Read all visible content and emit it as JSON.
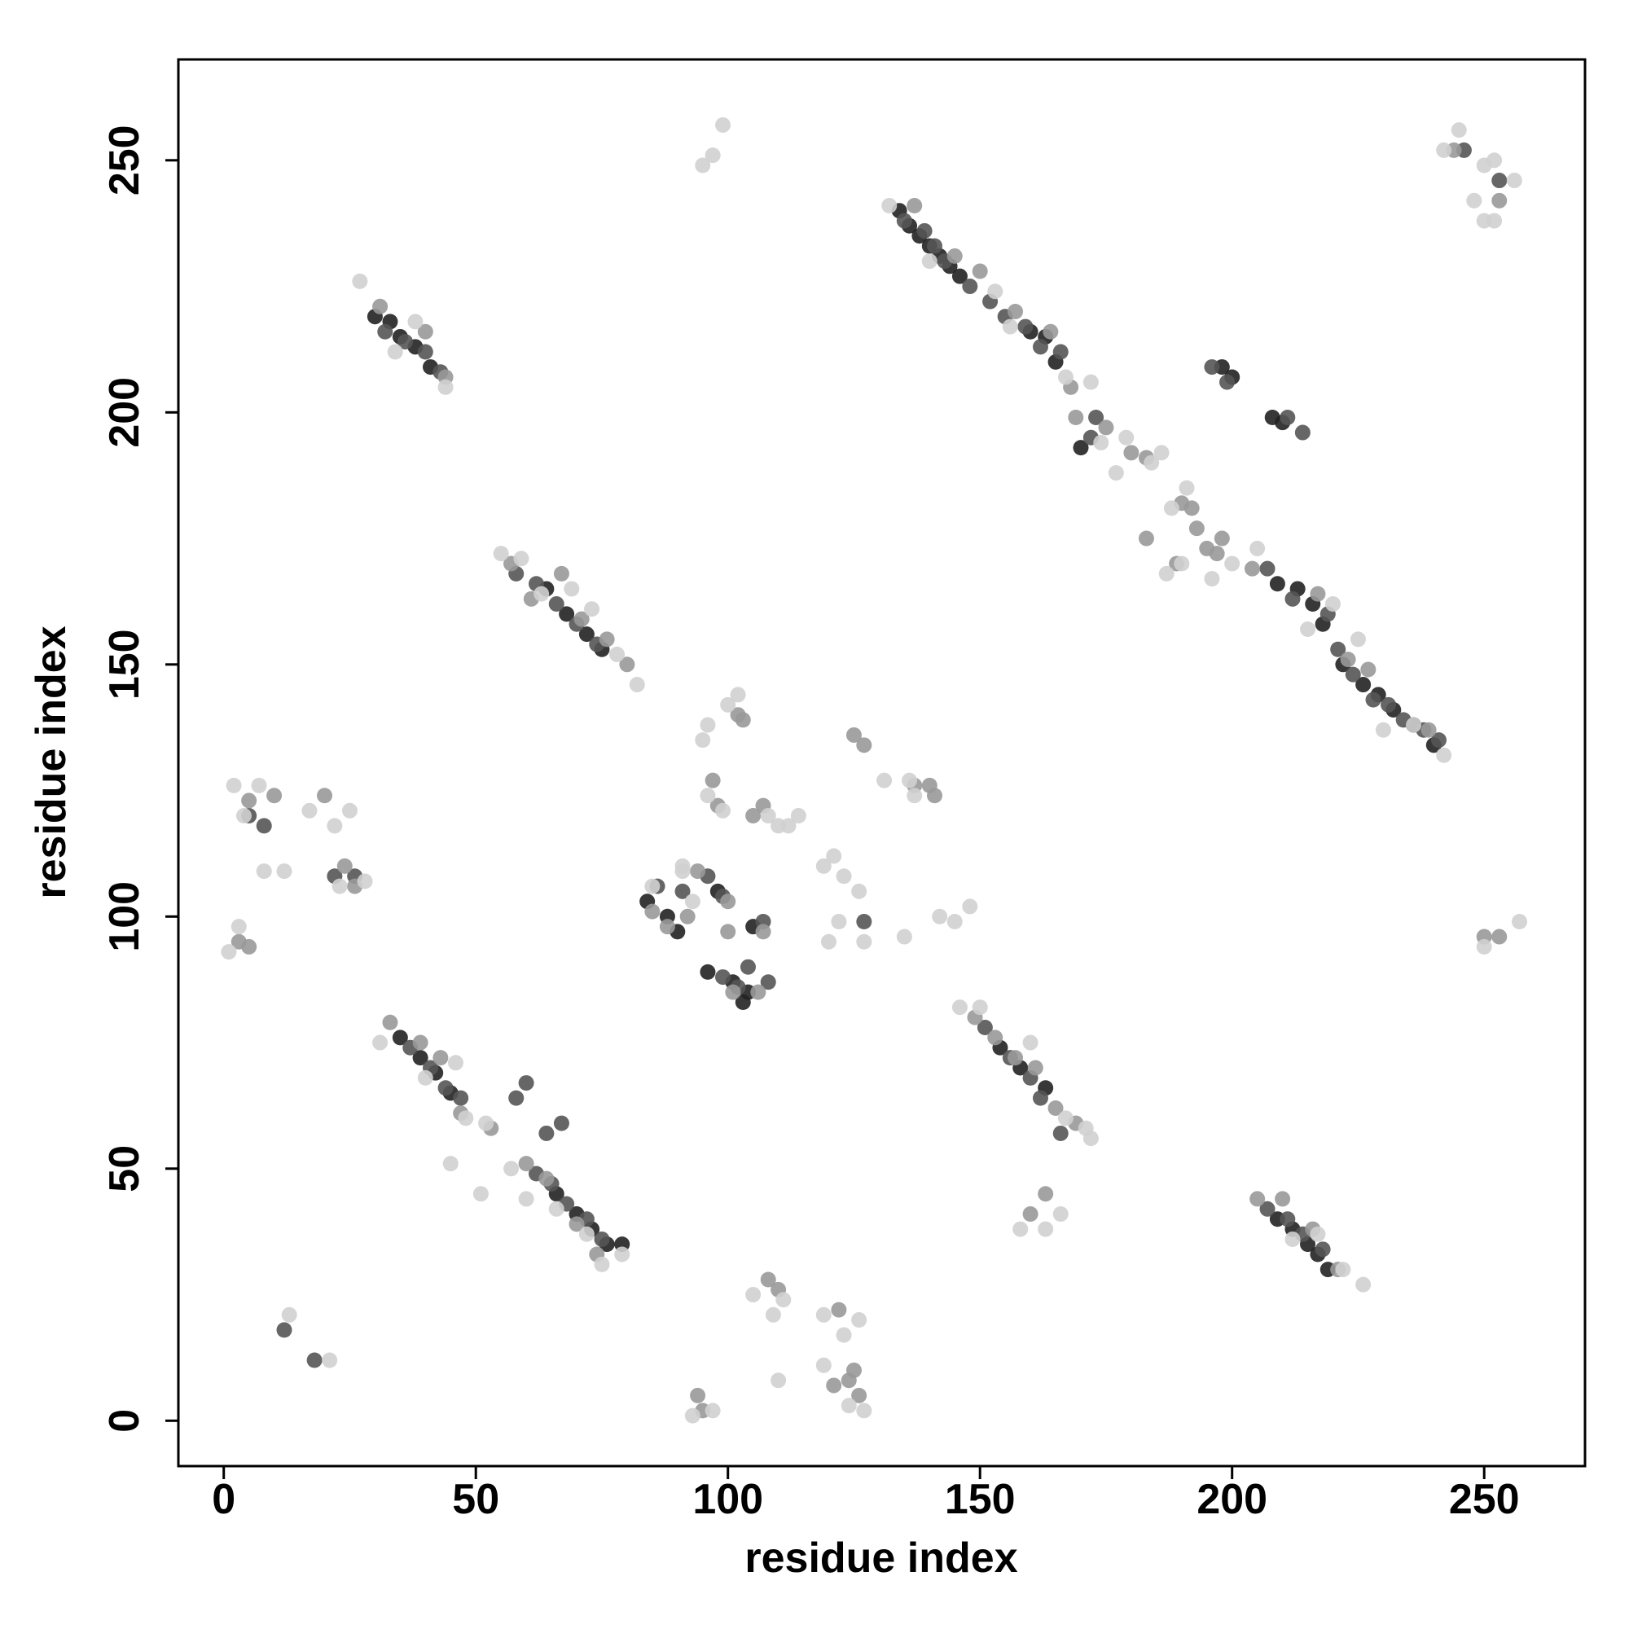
{
  "chart_data": {
    "type": "scatter",
    "xlabel": "residue index",
    "ylabel": "residue index",
    "xlim": [
      -9,
      270
    ],
    "ylim": [
      -9,
      270
    ],
    "xticks": [
      0,
      50,
      100,
      150,
      200,
      250
    ],
    "yticks": [
      0,
      50,
      100,
      150,
      200,
      250
    ],
    "series": [
      {
        "color": "#222222",
        "x": [
          134,
          136,
          138,
          140,
          142,
          144,
          146,
          160,
          163,
          165,
          170,
          200,
          198,
          208,
          210,
          209,
          213,
          216,
          218,
          222,
          226,
          229,
          232,
          236,
          240,
          30,
          33,
          35,
          38,
          41,
          64,
          68,
          72,
          75,
          35,
          39,
          42,
          45,
          66,
          70,
          73,
          76,
          79,
          154,
          158,
          163,
          209,
          212,
          215,
          217,
          219,
          84,
          88,
          90,
          98,
          96,
          101,
          104,
          105,
          103
        ],
        "y": [
          240,
          237,
          235,
          233,
          231,
          229,
          227,
          216,
          215,
          210,
          193,
          207,
          209,
          199,
          198,
          166,
          165,
          162,
          158,
          150,
          146,
          144,
          141,
          138,
          134,
          219,
          218,
          215,
          213,
          209,
          165,
          160,
          156,
          153,
          76,
          72,
          69,
          65,
          45,
          41,
          38,
          35,
          35,
          74,
          70,
          66,
          40,
          38,
          35,
          33,
          30,
          103,
          100,
          97,
          105,
          89,
          87,
          85,
          98,
          83
        ]
      },
      {
        "color": "#555555",
        "x": [
          135,
          139,
          141,
          143,
          148,
          152,
          155,
          159,
          162,
          166,
          172,
          173,
          196,
          199,
          211,
          214,
          207,
          212,
          219,
          221,
          224,
          228,
          231,
          234,
          238,
          241,
          32,
          36,
          40,
          43,
          58,
          62,
          66,
          70,
          74,
          37,
          41,
          44,
          47,
          58,
          62,
          65,
          68,
          72,
          75,
          151,
          156,
          160,
          162,
          166,
          207,
          211,
          214,
          218,
          86,
          91,
          96,
          99,
          107,
          104,
          99,
          102,
          108,
          22,
          26,
          5,
          8,
          64,
          67,
          60,
          12,
          18,
          253,
          246,
          127
        ],
        "y": [
          238,
          236,
          233,
          230,
          225,
          222,
          219,
          217,
          213,
          212,
          195,
          199,
          209,
          206,
          199,
          196,
          169,
          163,
          160,
          153,
          148,
          143,
          142,
          139,
          137,
          135,
          216,
          214,
          212,
          208,
          168,
          166,
          162,
          158,
          154,
          74,
          70,
          66,
          64,
          64,
          49,
          47,
          43,
          40,
          36,
          78,
          72,
          68,
          64,
          57,
          42,
          40,
          37,
          34,
          106,
          105,
          108,
          104,
          99,
          90,
          88,
          86,
          87,
          108,
          108,
          120,
          118,
          57,
          59,
          67,
          18,
          12,
          246,
          252,
          99
        ]
      },
      {
        "color": "#999999",
        "x": [
          137,
          145,
          150,
          157,
          164,
          168,
          169,
          175,
          180,
          190,
          193,
          195,
          197,
          204,
          217,
          223,
          227,
          239,
          31,
          40,
          44,
          57,
          61,
          67,
          71,
          76,
          80,
          33,
          39,
          43,
          47,
          53,
          60,
          64,
          70,
          74,
          149,
          153,
          157,
          161,
          165,
          169,
          205,
          210,
          216,
          221,
          85,
          88,
          92,
          100,
          94,
          107,
          101,
          106,
          100,
          98,
          97,
          102,
          103,
          125,
          127,
          137,
          140,
          141,
          107,
          105,
          10,
          5,
          26,
          24,
          20,
          3,
          5,
          94,
          95,
          108,
          110,
          121,
          124,
          125,
          126,
          163,
          160,
          122,
          250,
          253,
          253,
          244,
          189,
          192,
          198,
          183,
          183
        ],
        "y": [
          241,
          231,
          228,
          220,
          216,
          205,
          199,
          197,
          192,
          182,
          177,
          173,
          172,
          169,
          164,
          151,
          149,
          137,
          221,
          216,
          207,
          170,
          163,
          168,
          159,
          155,
          150,
          79,
          75,
          72,
          61,
          58,
          51,
          48,
          39,
          33,
          80,
          76,
          72,
          70,
          62,
          59,
          44,
          44,
          38,
          30,
          101,
          98,
          100,
          103,
          109,
          97,
          85,
          85,
          97,
          122,
          127,
          140,
          139,
          136,
          134,
          126,
          126,
          124,
          122,
          120,
          124,
          123,
          106,
          110,
          124,
          95,
          94,
          5,
          2,
          28,
          26,
          7,
          8,
          10,
          5,
          45,
          41,
          22,
          96,
          96,
          242,
          252,
          170,
          181,
          175,
          191,
          175
        ]
      },
      {
        "color": "#d0d0d0",
        "x": [
          132,
          140,
          153,
          156,
          167,
          172,
          174,
          177,
          179,
          184,
          186,
          188,
          191,
          187,
          190,
          196,
          200,
          205,
          215,
          220,
          225,
          230,
          236,
          242,
          27,
          34,
          38,
          44,
          55,
          59,
          63,
          69,
          73,
          78,
          82,
          31,
          40,
          46,
          48,
          51,
          45,
          52,
          57,
          60,
          66,
          72,
          75,
          79,
          146,
          150,
          160,
          167,
          172,
          171,
          212,
          217,
          222,
          226,
          91,
          85,
          93,
          95,
          97,
          99,
          96,
          95,
          100,
          102,
          96,
          99,
          108,
          110,
          112,
          114,
          119,
          121,
          123,
          126,
          120,
          127,
          122,
          136,
          131,
          137,
          145,
          148,
          135,
          142,
          2,
          4,
          7,
          8,
          12,
          17,
          22,
          23,
          25,
          28,
          1,
          3,
          250,
          257,
          93,
          97,
          110,
          105,
          109,
          111,
          119,
          123,
          126,
          119,
          124,
          127,
          158,
          166,
          163,
          250,
          252,
          248,
          250,
          252,
          256,
          242,
          245,
          13,
          21,
          91
        ],
        "y": [
          241,
          230,
          224,
          217,
          207,
          206,
          194,
          188,
          195,
          190,
          192,
          181,
          185,
          168,
          170,
          167,
          170,
          173,
          157,
          162,
          155,
          137,
          138,
          132,
          226,
          212,
          218,
          205,
          172,
          171,
          164,
          165,
          161,
          152,
          146,
          75,
          68,
          71,
          60,
          45,
          51,
          59,
          50,
          44,
          42,
          37,
          31,
          33,
          82,
          82,
          75,
          60,
          56,
          58,
          36,
          37,
          30,
          27,
          109,
          106,
          103,
          249,
          251,
          257,
          138,
          135,
          142,
          144,
          124,
          121,
          120,
          118,
          118,
          120,
          110,
          112,
          108,
          105,
          95,
          95,
          99,
          127,
          127,
          124,
          99,
          102,
          96,
          100,
          126,
          120,
          126,
          109,
          109,
          121,
          118,
          106,
          121,
          107,
          93,
          98,
          94,
          99,
          1,
          2,
          8,
          25,
          21,
          24,
          21,
          17,
          20,
          11,
          3,
          2,
          38,
          41,
          38,
          249,
          250,
          242,
          238,
          238,
          246,
          252,
          256,
          21,
          12,
          110
        ]
      }
    ]
  }
}
